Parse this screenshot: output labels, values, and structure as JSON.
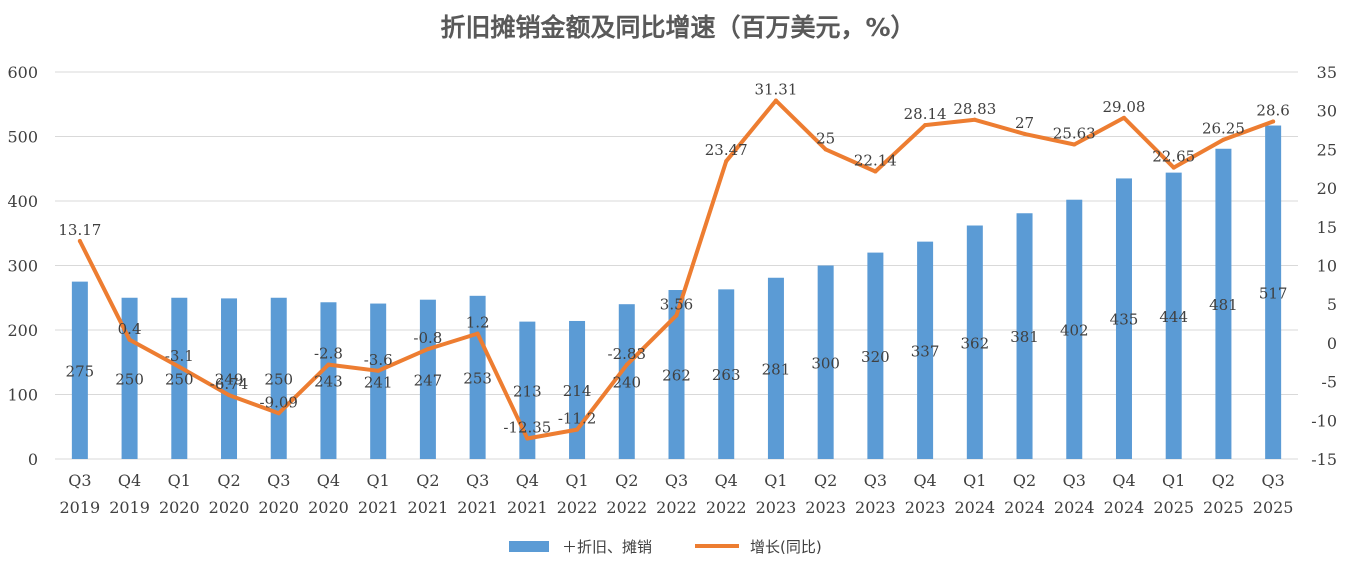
{
  "chart_data": {
    "type": "bar+line",
    "title": "折旧摊销金额及同比增速（百万美元，%）",
    "categories": [
      [
        "Q3",
        "2019"
      ],
      [
        "Q4",
        "2019"
      ],
      [
        "Q1",
        "2020"
      ],
      [
        "Q2",
        "2020"
      ],
      [
        "Q3",
        "2020"
      ],
      [
        "Q4",
        "2020"
      ],
      [
        "Q1",
        "2021"
      ],
      [
        "Q2",
        "2021"
      ],
      [
        "Q3",
        "2021"
      ],
      [
        "Q4",
        "2021"
      ],
      [
        "Q1",
        "2022"
      ],
      [
        "Q2",
        "2022"
      ],
      [
        "Q3",
        "2022"
      ],
      [
        "Q4",
        "2022"
      ],
      [
        "Q1",
        "2023"
      ],
      [
        "Q2",
        "2023"
      ],
      [
        "Q3",
        "2023"
      ],
      [
        "Q4",
        "2023"
      ],
      [
        "Q1",
        "2024"
      ],
      [
        "Q2",
        "2024"
      ],
      [
        "Q3",
        "2024"
      ],
      [
        "Q4",
        "2024"
      ],
      [
        "Q1",
        "2025"
      ],
      [
        "Q2",
        "2025"
      ],
      [
        "Q3",
        "2025"
      ]
    ],
    "series": [
      {
        "name": "＋折旧、摊销",
        "type": "bar",
        "axis": "left",
        "color": "#5B9BD5",
        "values": [
          275,
          250,
          250,
          249,
          250,
          243,
          241,
          247,
          253,
          213,
          214,
          240,
          262,
          263,
          281,
          300,
          320,
          337,
          362,
          381,
          402,
          435,
          444,
          481,
          517
        ],
        "labels": [
          "275",
          "250",
          "250",
          "249",
          "250",
          "243",
          "241",
          "247",
          "253",
          "213",
          "214",
          "240",
          "262",
          "263",
          "281",
          "300",
          "320",
          "337",
          "362",
          "381",
          "402",
          "435",
          "444",
          "481",
          "517"
        ]
      },
      {
        "name": "增长(同比)",
        "type": "line",
        "axis": "right",
        "color": "#ED7D31",
        "values": [
          13.17,
          0.4,
          -3.1,
          -6.74,
          -9.09,
          -2.8,
          -3.6,
          -0.8,
          1.2,
          -12.35,
          -11.2,
          -2.83,
          3.56,
          23.47,
          31.31,
          25,
          22.14,
          28.14,
          28.83,
          27,
          25.63,
          29.08,
          22.65,
          26.25,
          28.6
        ],
        "labels": [
          "13.17",
          "0.4",
          "-3.1",
          "-6.74",
          "-9.09",
          "-2.8",
          "-3.6",
          "-0.8",
          "1.2",
          "-12.35",
          "-11.2",
          "-2.83",
          "3.56",
          "23.47",
          "31.31",
          "25",
          "22.14",
          "28.14",
          "28.83",
          "27",
          "25.63",
          "29.08",
          "22.65",
          "26.25",
          "28.6"
        ]
      }
    ],
    "y_left": {
      "min": 0,
      "max": 600,
      "step": 100,
      "ticks": [
        "0",
        "100",
        "200",
        "300",
        "400",
        "500",
        "600"
      ]
    },
    "y_right": {
      "min": -15,
      "max": 35,
      "step": 5,
      "ticks": [
        "-15",
        "-10",
        "-5",
        "0",
        "5",
        "10",
        "15",
        "20",
        "25",
        "30",
        "35"
      ]
    },
    "grid": true,
    "legend_position": "bottom",
    "legend": [
      "＋折旧、摊销",
      "增长(同比)"
    ]
  }
}
